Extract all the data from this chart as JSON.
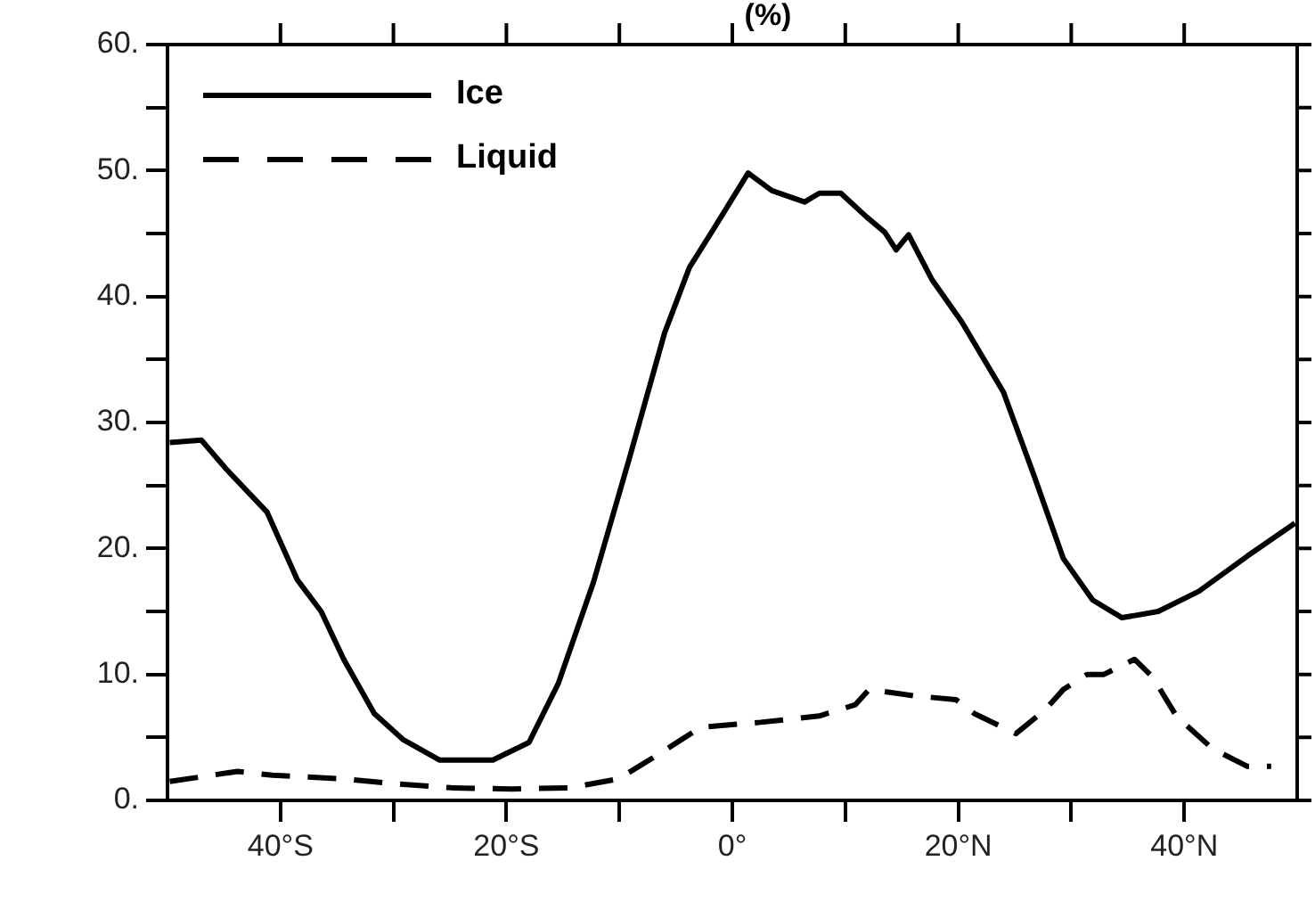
{
  "chart_data": {
    "type": "line",
    "title": "(%)",
    "xlim": [
      -50,
      50
    ],
    "xticks": [
      {
        "value": -40,
        "label": "40°S"
      },
      {
        "value": -30,
        "label": null
      },
      {
        "value": -20,
        "label": "20°S"
      },
      {
        "value": -10,
        "label": null
      },
      {
        "value": 0,
        "label": "0°"
      },
      {
        "value": 10,
        "label": null
      },
      {
        "value": 20,
        "label": "20°N"
      },
      {
        "value": 30,
        "label": null
      },
      {
        "value": 40,
        "label": "40°N"
      }
    ],
    "ylim": [
      0,
      60
    ],
    "yticks": [
      {
        "value": 0,
        "label": "0."
      },
      {
        "value": 5,
        "label": null
      },
      {
        "value": 10,
        "label": "10."
      },
      {
        "value": 15,
        "label": null
      },
      {
        "value": 20,
        "label": "20."
      },
      {
        "value": 25,
        "label": null
      },
      {
        "value": 30,
        "label": "30."
      },
      {
        "value": 35,
        "label": null
      },
      {
        "value": 40,
        "label": "40."
      },
      {
        "value": 45,
        "label": null
      },
      {
        "value": 50,
        "label": "50."
      },
      {
        "value": 55,
        "label": null
      },
      {
        "value": 60,
        "label": "60."
      }
    ],
    "grid": false,
    "legend": "top left",
    "marker": "none",
    "series": [
      {
        "name": "Ice",
        "color": "#000000",
        "line_style": "solid",
        "x": [
          -49.8,
          -47,
          -44.8,
          -41.2,
          -38.5,
          -36.4,
          -34.4,
          -31.7,
          -29.1,
          -25.9,
          -21.2,
          -18,
          -15.4,
          -12.3,
          -9.1,
          -6,
          -3.8,
          -1.7,
          1.4,
          3.5,
          6.4,
          7.7,
          9.6,
          11.9,
          13.5,
          14.5,
          15.6,
          17.7,
          20.3,
          24,
          26.7,
          29.3,
          31.9,
          34.5,
          37.7,
          41.3,
          45.6,
          49.8
        ],
        "values": [
          28.4,
          28.6,
          26.3,
          22.9,
          17.5,
          15,
          11.2,
          6.9,
          4.8,
          3.2,
          3.2,
          4.6,
          9.3,
          17.3,
          27.2,
          37.1,
          42.3,
          45.3,
          49.8,
          48.4,
          47.5,
          48.2,
          48.2,
          46.3,
          45.1,
          43.7,
          44.9,
          41.3,
          38,
          32.4,
          25.8,
          19.2,
          15.9,
          14.5,
          15,
          16.6,
          19.4,
          22
        ]
      },
      {
        "name": "Liquid",
        "color": "#000000",
        "line_style": "dashed",
        "x": [
          -49.8,
          -43.8,
          -40.7,
          -34.4,
          -29.6,
          -24.9,
          -19.6,
          -14.4,
          -10.1,
          -7,
          -2.8,
          2.5,
          7.7,
          10.9,
          12.1,
          16.1,
          19.8,
          21.4,
          25.1,
          27.7,
          29.3,
          31.4,
          32.9,
          35.6,
          37.2,
          39.3,
          42.5,
          45.6,
          47.7
        ],
        "values": [
          1.5,
          2.3,
          2,
          1.7,
          1.3,
          1,
          0.9,
          1,
          1.7,
          3.4,
          5.8,
          6.2,
          6.7,
          7.6,
          8.8,
          8.3,
          8,
          6.9,
          5.3,
          7.2,
          8.8,
          10,
          10,
          11.2,
          9.8,
          6.7,
          4.1,
          2.7,
          2.7
        ]
      }
    ]
  }
}
